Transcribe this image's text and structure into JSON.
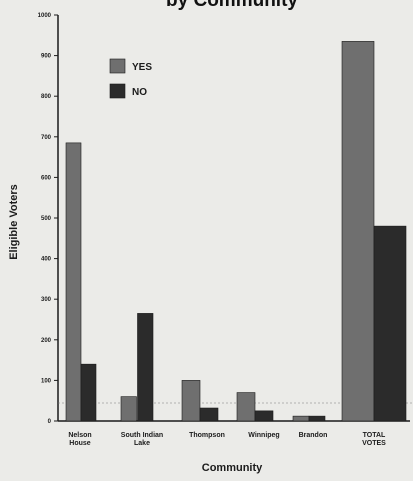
{
  "chart_data": {
    "type": "bar",
    "title": "by Community",
    "xlabel": "Community",
    "ylabel": "Eligible Voters",
    "ylim": [
      0,
      1000
    ],
    "yticks": [
      "0",
      "100",
      "200",
      "300",
      "400",
      "500",
      "600",
      "700",
      "800",
      "900",
      "1000"
    ],
    "categories": [
      [
        "Nelson",
        "House"
      ],
      [
        "South Indian",
        "Lake"
      ],
      [
        "Thompson"
      ],
      [
        "Winnipeg"
      ],
      [
        "Brandon"
      ],
      [
        "TOTAL",
        "VOTES"
      ]
    ],
    "series": [
      {
        "name": "YES",
        "color": "#6f6f6f",
        "values": [
          685,
          60,
          100,
          70,
          12,
          935
        ]
      },
      {
        "name": "NO",
        "color": "#2b2b2b",
        "values": [
          140,
          265,
          32,
          25,
          12,
          480
        ]
      }
    ],
    "legend_position": "top-left",
    "grid": false
  }
}
